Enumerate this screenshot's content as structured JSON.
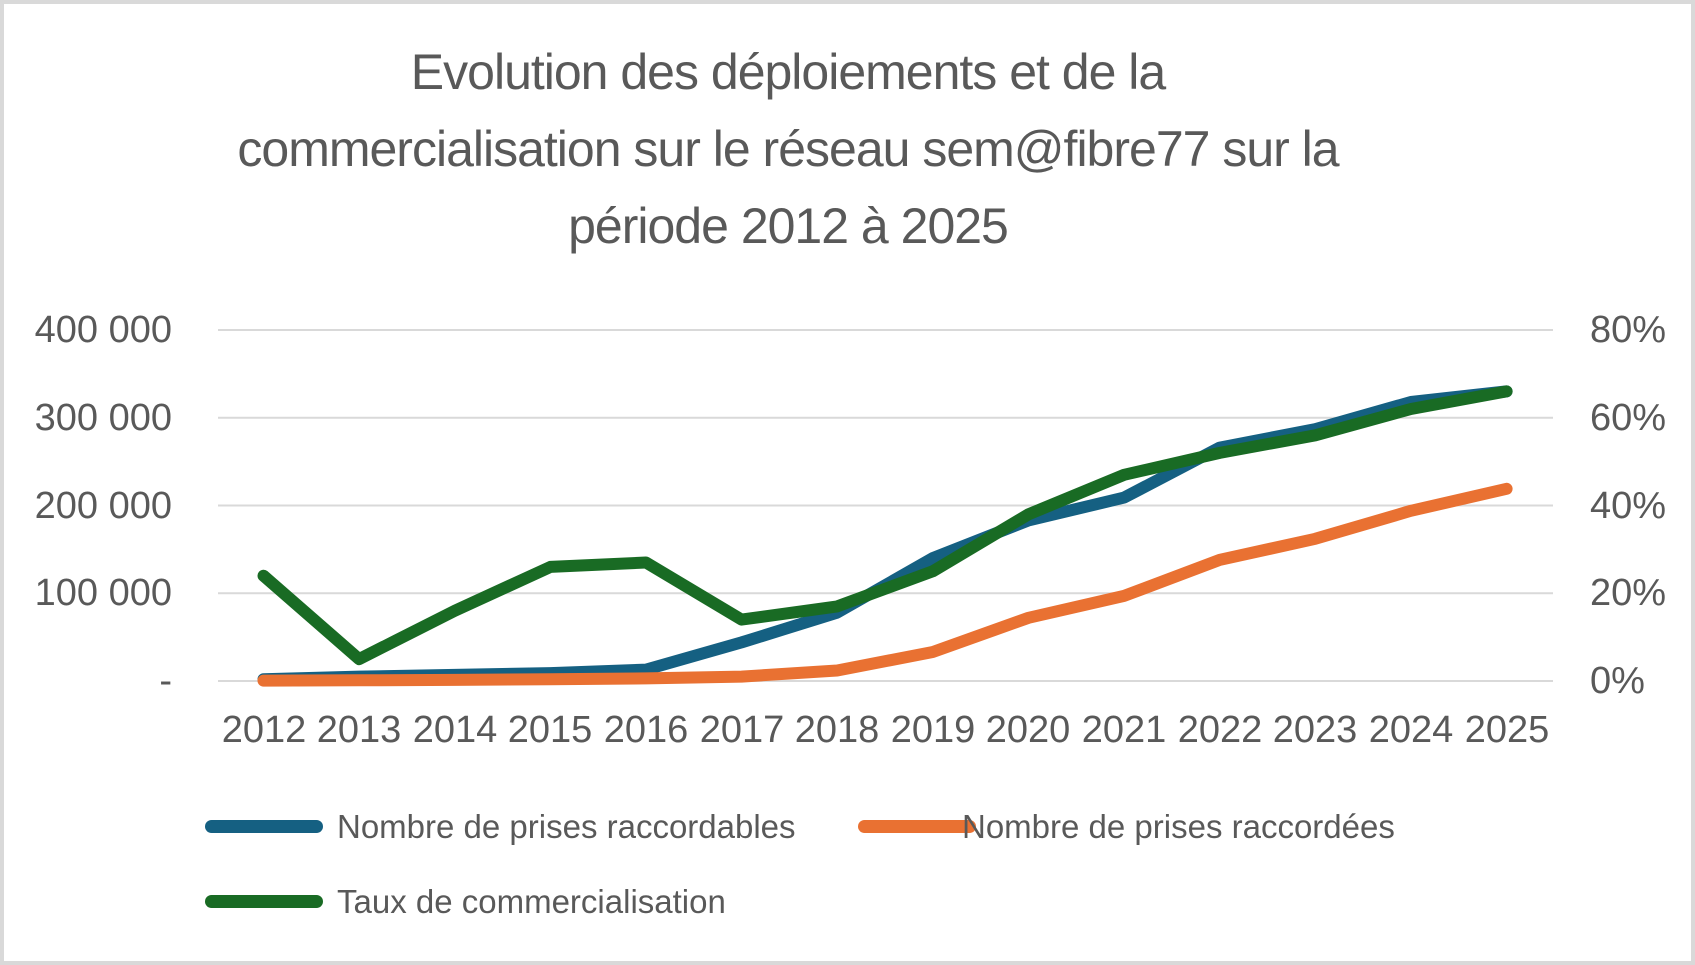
{
  "chart_title": {
    "full": "Evolution des déploiements et de la commercialisation sur le réseau sem@fibre77 sur la période 2012 à 2025",
    "lines": [
      "Evolution des déploiements et de la",
      "commercialisation sur le réseau sem@fibre77 sur la",
      "période 2012 à 2025"
    ]
  },
  "colors": {
    "series_blue": "#156082",
    "series_orange": "#E97132",
    "series_green": "#196B24",
    "axis_text": "#595959",
    "gridline": "#D9D9D9",
    "canvas_border": "#D9D9D9",
    "background": "#FFFFFF"
  },
  "chart_data": {
    "type": "line",
    "title": "Evolution des déploiements et de la commercialisation sur le réseau sem@fibre77 sur la période 2012 à 2025",
    "categories": [
      "2012",
      "2013",
      "2014",
      "2015",
      "2016",
      "2017",
      "2018",
      "2019",
      "2020",
      "2021",
      "2022",
      "2023",
      "2024",
      "2025"
    ],
    "series": [
      {
        "id": "raccordables",
        "name": "Nombre de prises raccordables",
        "axis": "left",
        "color": "#156082",
        "values": [
          2000,
          5000,
          7000,
          9000,
          13000,
          44000,
          78000,
          140000,
          183000,
          209000,
          266000,
          287000,
          318000,
          330000
        ]
      },
      {
        "id": "raccordees",
        "name": "Nombre de prises raccordées",
        "axis": "left",
        "color": "#E97132",
        "values": [
          400,
          800,
          1200,
          2000,
          3000,
          5000,
          12000,
          33000,
          72000,
          97000,
          138000,
          162000,
          194000,
          219000
        ]
      },
      {
        "id": "taux",
        "name": "Taux de commercialisation",
        "axis": "right",
        "color": "#196B24",
        "values": [
          24,
          5,
          16,
          26,
          27,
          14,
          17,
          25,
          38,
          47,
          52,
          56,
          62,
          66
        ]
      }
    ],
    "y_axis_left": {
      "ticks_top_to_bottom": [
        "400 000",
        "300 000",
        "200 000",
        "100 000",
        "-"
      ],
      "min": 0,
      "max": 400000,
      "unit": "prises"
    },
    "y_axis_right": {
      "ticks_top_to_bottom": [
        "80%",
        "60%",
        "40%",
        "20%",
        "0%"
      ],
      "min": 0,
      "max": 80,
      "unit": "%"
    },
    "grid": true,
    "legend_position": "bottom-left",
    "legend_entries": [
      "Nombre de prises raccordables",
      "Nombre de prises raccordées",
      "Taux de commercialisation"
    ]
  }
}
